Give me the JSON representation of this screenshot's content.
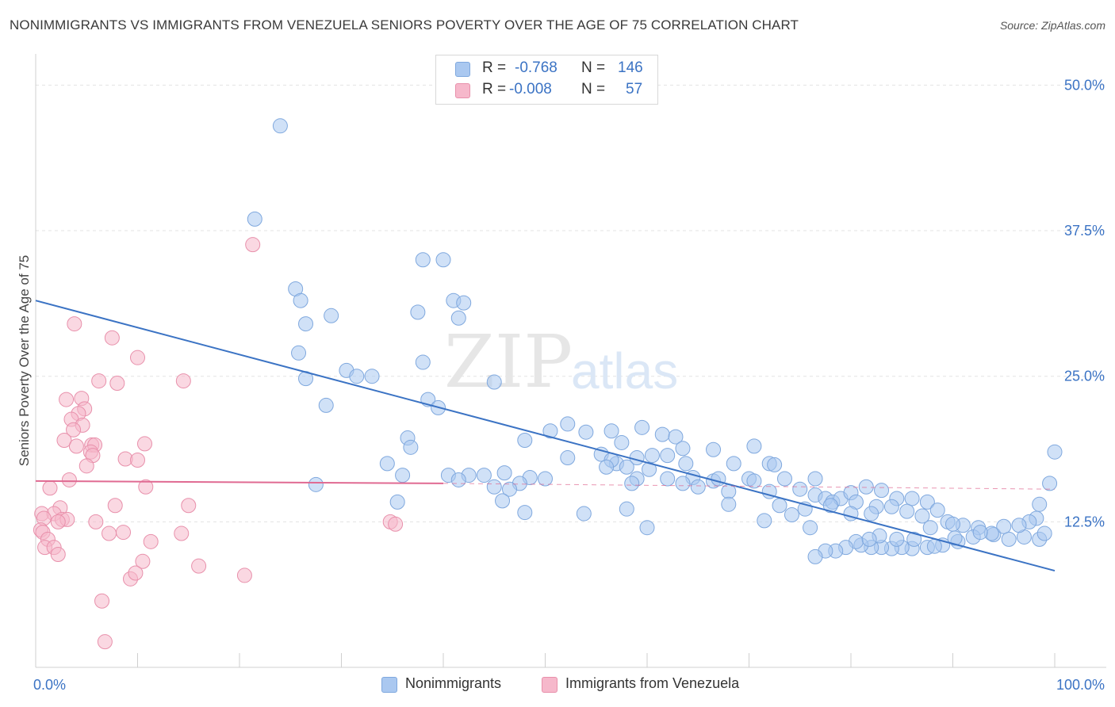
{
  "title": "NONIMMIGRANTS VS IMMIGRANTS FROM VENEZUELA SENIORS POVERTY OVER THE AGE OF 75 CORRELATION CHART",
  "source": "Source: ZipAtlas.com",
  "watermark": {
    "zip": "ZIP",
    "atlas": "atlas"
  },
  "legend": {
    "rows": [
      {
        "r_label": "R =",
        "r_value": "-0.768",
        "n_label": "N =",
        "n_value": "146",
        "color": "#aac8f0"
      },
      {
        "r_label": "R =",
        "r_value": "-0.008",
        "n_label": "N =",
        "n_value": "57",
        "color": "#f6b8cb"
      }
    ]
  },
  "chart_data": {
    "type": "scatter",
    "xlabel": "",
    "ylabel": "Seniors Poverty Over the Age of 75",
    "xlim": [
      0,
      100
    ],
    "ylim": [
      0,
      52
    ],
    "x_tick_labels": [
      "0.0%",
      "100.0%"
    ],
    "y_ticks": [
      12.5,
      25.0,
      37.5,
      50.0
    ],
    "y_tick_labels": [
      "12.5%",
      "25.0%",
      "37.5%",
      "50.0%"
    ],
    "grid": true,
    "legend_position": "bottom-center",
    "series": [
      {
        "name": "Nonimmigrants",
        "color": "#aac8f0",
        "stroke": "#7fa8de",
        "trend": {
          "x": [
            0,
            100
          ],
          "y": [
            31.5,
            8.3
          ],
          "color": "#3b73c4"
        },
        "points": [
          [
            24,
            46.5
          ],
          [
            21.5,
            38.5
          ],
          [
            38,
            35
          ],
          [
            40,
            35
          ],
          [
            25.5,
            32.5
          ],
          [
            26,
            31.5
          ],
          [
            41,
            31.5
          ],
          [
            42,
            31.3
          ],
          [
            37.5,
            30.5
          ],
          [
            41.5,
            30
          ],
          [
            29,
            30.2
          ],
          [
            26.5,
            29.5
          ],
          [
            25.8,
            27
          ],
          [
            38,
            26.2
          ],
          [
            30.5,
            25.5
          ],
          [
            31.5,
            25
          ],
          [
            33,
            25
          ],
          [
            45,
            24.5
          ],
          [
            26.5,
            24.8
          ],
          [
            38.5,
            23
          ],
          [
            28.5,
            22.5
          ],
          [
            39.5,
            22.3
          ],
          [
            52.2,
            20.9
          ],
          [
            59.5,
            20.6
          ],
          [
            56.5,
            20.3
          ],
          [
            50.5,
            20.3
          ],
          [
            61.5,
            20
          ],
          [
            54,
            20.2
          ],
          [
            57.5,
            19.3
          ],
          [
            48,
            19.5
          ],
          [
            62.8,
            19.8
          ],
          [
            36.5,
            19.7
          ],
          [
            63.5,
            18.8
          ],
          [
            70.5,
            19
          ],
          [
            36.8,
            18.9
          ],
          [
            66.5,
            18.7
          ],
          [
            60.5,
            18.2
          ],
          [
            55.5,
            18.3
          ],
          [
            59,
            18
          ],
          [
            62,
            18.2
          ],
          [
            52.2,
            18
          ],
          [
            57,
            17.5
          ],
          [
            56.5,
            17.8
          ],
          [
            63.8,
            17.5
          ],
          [
            56,
            17.2
          ],
          [
            68.5,
            17.5
          ],
          [
            72,
            17.5
          ],
          [
            72.5,
            17.4
          ],
          [
            34.5,
            17.5
          ],
          [
            58,
            17.2
          ],
          [
            60.2,
            17
          ],
          [
            36,
            16.5
          ],
          [
            40.5,
            16.5
          ],
          [
            42.5,
            16.5
          ],
          [
            44,
            16.5
          ],
          [
            46,
            16.7
          ],
          [
            48.5,
            16.3
          ],
          [
            41.5,
            16.1
          ],
          [
            50,
            16.2
          ],
          [
            59,
            16.2
          ],
          [
            62,
            16.2
          ],
          [
            64.5,
            16.3
          ],
          [
            66.5,
            16
          ],
          [
            67,
            16.2
          ],
          [
            70,
            16.2
          ],
          [
            73.5,
            16.2
          ],
          [
            76.5,
            16.2
          ],
          [
            70.5,
            16
          ],
          [
            63.5,
            15.8
          ],
          [
            27.5,
            15.7
          ],
          [
            47.5,
            15.8
          ],
          [
            58.5,
            15.8
          ],
          [
            45,
            15.5
          ],
          [
            46.5,
            15.3
          ],
          [
            68,
            15.1
          ],
          [
            72,
            15.1
          ],
          [
            75,
            15.3
          ],
          [
            76.5,
            14.8
          ],
          [
            77.5,
            14.5
          ],
          [
            78.2,
            14.2
          ],
          [
            79,
            14.5
          ],
          [
            80,
            15
          ],
          [
            81.5,
            15.5
          ],
          [
            83,
            15.2
          ],
          [
            80.5,
            14.2
          ],
          [
            84.5,
            14.5
          ],
          [
            86,
            14.5
          ],
          [
            87.5,
            14.2
          ],
          [
            78,
            13.9
          ],
          [
            73,
            13.9
          ],
          [
            75.5,
            13.6
          ],
          [
            82.5,
            13.8
          ],
          [
            84,
            13.8
          ],
          [
            85.5,
            13.4
          ],
          [
            80,
            13.2
          ],
          [
            82,
            13.2
          ],
          [
            87,
            13
          ],
          [
            88.5,
            13.5
          ],
          [
            89.5,
            12.5
          ],
          [
            91,
            12.2
          ],
          [
            92.5,
            12
          ],
          [
            94,
            11.4
          ],
          [
            95.5,
            11
          ],
          [
            97,
            11.2
          ],
          [
            98.5,
            11
          ],
          [
            99,
            11.5
          ],
          [
            100,
            18.5
          ],
          [
            99.5,
            15.8
          ],
          [
            98.5,
            14
          ],
          [
            98.2,
            12.8
          ],
          [
            97.5,
            12.5
          ],
          [
            96.5,
            12.2
          ],
          [
            95,
            12.1
          ],
          [
            93.8,
            11.5
          ],
          [
            92,
            11.2
          ],
          [
            90.5,
            10.8
          ],
          [
            89,
            10.5
          ],
          [
            87.5,
            10.3
          ],
          [
            86,
            10.2
          ],
          [
            85,
            10.3
          ],
          [
            84,
            10.2
          ],
          [
            83,
            10.3
          ],
          [
            82,
            10.3
          ],
          [
            81,
            10.5
          ],
          [
            80.5,
            10.8
          ],
          [
            79.5,
            10.3
          ],
          [
            78.5,
            10
          ],
          [
            77.5,
            10
          ],
          [
            76.5,
            9.5
          ],
          [
            87.8,
            12
          ],
          [
            90,
            12.3
          ],
          [
            92.7,
            11.6
          ],
          [
            84.5,
            11
          ],
          [
            82.8,
            11.3
          ],
          [
            81.8,
            11
          ],
          [
            90.2,
            11.1
          ],
          [
            86.2,
            11
          ],
          [
            88.2,
            10.4
          ],
          [
            76,
            12
          ],
          [
            74.2,
            13.1
          ],
          [
            71.5,
            12.6
          ],
          [
            68,
            14
          ],
          [
            65,
            15.5
          ],
          [
            60,
            12
          ],
          [
            58,
            13.6
          ],
          [
            53.8,
            13.2
          ],
          [
            35.5,
            14.2
          ],
          [
            45.8,
            14.3
          ],
          [
            48,
            13.3
          ]
        ]
      },
      {
        "name": "Immigrants from Venezuela",
        "color": "#f6b8cb",
        "stroke": "#e890ab",
        "trend": {
          "x": [
            0,
            40
          ],
          "y": [
            16,
            15.8
          ],
          "color": "#e06a92",
          "dashed_to": [
            100,
            15.3
          ]
        },
        "points": [
          [
            21.3,
            36.3
          ],
          [
            3.8,
            29.5
          ],
          [
            7.5,
            28.3
          ],
          [
            10,
            26.6
          ],
          [
            6.2,
            24.6
          ],
          [
            14.5,
            24.6
          ],
          [
            8,
            24.4
          ],
          [
            3,
            23
          ],
          [
            4.5,
            23.1
          ],
          [
            4.8,
            22.2
          ],
          [
            4.2,
            21.8
          ],
          [
            3.5,
            21.3
          ],
          [
            4.6,
            20.8
          ],
          [
            3.7,
            20.4
          ],
          [
            2.8,
            19.5
          ],
          [
            5.5,
            19.1
          ],
          [
            5.8,
            19.1
          ],
          [
            10.7,
            19.2
          ],
          [
            4,
            19
          ],
          [
            5.4,
            18.5
          ],
          [
            5.6,
            18.2
          ],
          [
            8.8,
            17.9
          ],
          [
            10,
            17.8
          ],
          [
            5,
            17.3
          ],
          [
            3.3,
            16.1
          ],
          [
            1.4,
            15.4
          ],
          [
            10.8,
            15.5
          ],
          [
            7.8,
            13.9
          ],
          [
            15,
            13.9
          ],
          [
            2.4,
            13.7
          ],
          [
            0.6,
            13.2
          ],
          [
            1.8,
            13.2
          ],
          [
            0.8,
            12.8
          ],
          [
            2.6,
            12.7
          ],
          [
            3.1,
            12.7
          ],
          [
            2.2,
            12.5
          ],
          [
            5.9,
            12.5
          ],
          [
            34.8,
            12.5
          ],
          [
            35.3,
            12.3
          ],
          [
            0.5,
            11.8
          ],
          [
            0.7,
            11.6
          ],
          [
            7.2,
            11.5
          ],
          [
            8.6,
            11.6
          ],
          [
            14.3,
            11.5
          ],
          [
            1.2,
            11
          ],
          [
            11.3,
            10.8
          ],
          [
            0.9,
            10.3
          ],
          [
            1.8,
            10.3
          ],
          [
            2.2,
            9.7
          ],
          [
            10.5,
            9.1
          ],
          [
            16,
            8.7
          ],
          [
            20.5,
            7.9
          ],
          [
            9.3,
            7.6
          ],
          [
            9.8,
            8.1
          ],
          [
            6.5,
            5.7
          ],
          [
            6.8,
            2.2
          ]
        ]
      }
    ]
  }
}
